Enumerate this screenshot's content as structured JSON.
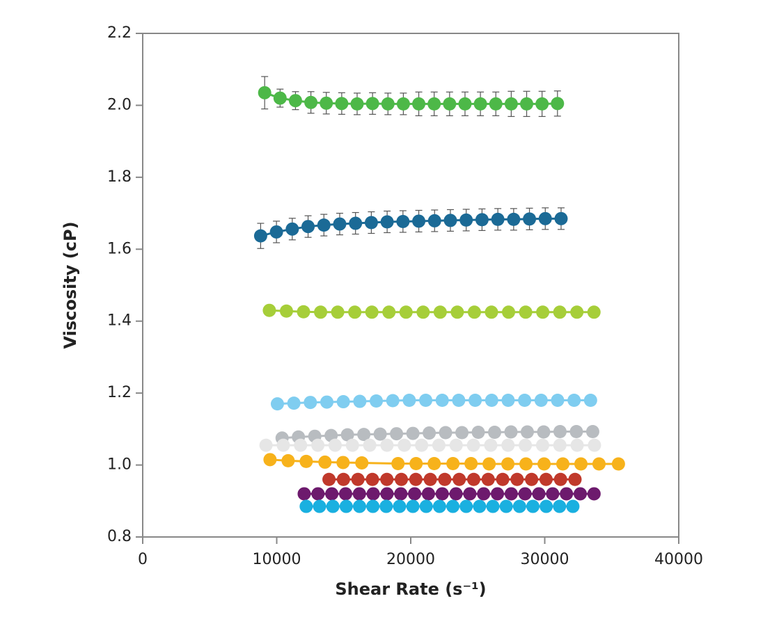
{
  "chart_data": {
    "type": "scatter",
    "xlabel": "Shear Rate (s⁻¹)",
    "ylabel": "Viscosity (cP)",
    "xlim": [
      0,
      40000
    ],
    "xticks": [
      0,
      10000,
      20000,
      30000,
      40000
    ],
    "ylim": [
      0.8,
      2.2
    ],
    "yticks": [
      0.8,
      {
        "value": 1,
        "label": "1.0"
      },
      1.2,
      1.4,
      1.6,
      1.8,
      {
        "value": 2,
        "label": "2.0"
      },
      2.2
    ],
    "series": [
      {
        "color": "#4db848",
        "x": [
          9100,
          10250,
          11400,
          12550,
          13700,
          14850,
          16000,
          17150,
          18300,
          19450,
          20600,
          21750,
          22900,
          24050,
          25200,
          26350,
          27500,
          28650,
          29800,
          30950
        ],
        "values": [
          2.035,
          2.02,
          2.013,
          2.008,
          2.006,
          2.005,
          2.004,
          2.005,
          2.004,
          2.004,
          2.004,
          2.004,
          2.004,
          2.004,
          2.004,
          2.004,
          2.004,
          2.004,
          2.004,
          2.005
        ],
        "errors": [
          0.045,
          0.025,
          0.025,
          0.03,
          0.03,
          0.03,
          0.03,
          0.03,
          0.03,
          0.03,
          0.033,
          0.033,
          0.033,
          0.033,
          0.033,
          0.033,
          0.035,
          0.035,
          0.035,
          0.035
        ]
      },
      {
        "color": "#1b6a96",
        "x": [
          8800,
          9980,
          11160,
          12340,
          13520,
          14700,
          15880,
          17060,
          18240,
          19420,
          20600,
          21780,
          22960,
          24140,
          25320,
          26500,
          27680,
          28860,
          30040,
          31220
        ],
        "values": [
          1.637,
          1.648,
          1.656,
          1.663,
          1.667,
          1.67,
          1.672,
          1.674,
          1.676,
          1.677,
          1.678,
          1.679,
          1.68,
          1.681,
          1.682,
          1.683,
          1.683,
          1.684,
          1.685,
          1.685
        ],
        "errors": [
          0.035,
          0.03,
          0.03,
          0.03,
          0.03,
          0.03,
          0.03,
          0.03,
          0.03,
          0.03,
          0.03,
          0.03,
          0.03,
          0.03,
          0.03,
          0.03,
          0.03,
          0.03,
          0.03,
          0.03
        ]
      },
      {
        "color": "#a6ce39",
        "x": [
          9450,
          10725,
          12000,
          13275,
          14550,
          15825,
          17100,
          18375,
          19650,
          20925,
          22200,
          23475,
          24750,
          26025,
          27300,
          28575,
          29850,
          31125,
          32400,
          33675
        ],
        "values": [
          1.43,
          1.428,
          1.426,
          1.425,
          1.425,
          1.425,
          1.425,
          1.425,
          1.425,
          1.425,
          1.425,
          1.425,
          1.425,
          1.425,
          1.425,
          1.425,
          1.425,
          1.425,
          1.425,
          1.425
        ]
      },
      {
        "color": "#7fcdf0",
        "x": [
          10050,
          11280,
          12510,
          13740,
          14970,
          16200,
          17430,
          18660,
          19890,
          21120,
          22350,
          23580,
          24810,
          26040,
          27270,
          28500,
          29730,
          30960,
          32190,
          33420
        ],
        "values": [
          1.17,
          1.172,
          1.174,
          1.175,
          1.176,
          1.177,
          1.178,
          1.179,
          1.18,
          1.18,
          1.18,
          1.18,
          1.18,
          1.18,
          1.18,
          1.18,
          1.18,
          1.18,
          1.18,
          1.18
        ]
      },
      {
        "color": "#b8bcc0",
        "x": [
          10400,
          11620,
          12840,
          14060,
          15280,
          16500,
          17720,
          18940,
          20160,
          21380,
          22600,
          23820,
          25040,
          26260,
          27480,
          28700,
          29920,
          31140,
          32360,
          33580
        ],
        "values": [
          1.075,
          1.078,
          1.08,
          1.082,
          1.084,
          1.085,
          1.086,
          1.087,
          1.088,
          1.089,
          1.09,
          1.09,
          1.091,
          1.091,
          1.092,
          1.092,
          1.092,
          1.093,
          1.093,
          1.093
        ]
      },
      {
        "color": "#e6e6e6",
        "x": [
          9200,
          10490,
          11780,
          13070,
          14360,
          15650,
          16940,
          18230,
          19520,
          20810,
          22100,
          23390,
          24680,
          25970,
          27260,
          28550,
          29840,
          31130,
          32420,
          33710
        ],
        "values": [
          1.055,
          1.055,
          1.055,
          1.055,
          1.055,
          1.055,
          1.055,
          1.055,
          1.055,
          1.055,
          1.055,
          1.055,
          1.055,
          1.055,
          1.055,
          1.055,
          1.055,
          1.055,
          1.055,
          1.055
        ]
      },
      {
        "color": "#f7b21b",
        "x": [
          9500,
          10850,
          12200,
          13600,
          14950,
          16350,
          19050,
          20400,
          21750,
          23150,
          24500,
          25850,
          27250,
          28600,
          29950,
          31350,
          32700,
          34050,
          35500
        ],
        "values": [
          1.015,
          1.012,
          1.01,
          1.008,
          1.007,
          1.006,
          1.004,
          1.004,
          1.004,
          1.004,
          1.004,
          1.003,
          1.003,
          1.003,
          1.003,
          1.003,
          1.003,
          1.003,
          1.003
        ]
      },
      {
        "color": "#c0392b",
        "x": [
          13900,
          14980,
          16060,
          17140,
          18220,
          19300,
          20380,
          21460,
          22540,
          23620,
          24700,
          25780,
          26860,
          27940,
          29020,
          30100,
          31180,
          32260
        ],
        "values": [
          0.96,
          0.96,
          0.96,
          0.96,
          0.96,
          0.96,
          0.96,
          0.96,
          0.96,
          0.96,
          0.96,
          0.96,
          0.96,
          0.96,
          0.96,
          0.96,
          0.96,
          0.96
        ]
      },
      {
        "color": "#6d1a6d",
        "x": [
          12050,
          13080,
          14110,
          15140,
          16170,
          17200,
          18230,
          19260,
          20290,
          21320,
          22350,
          23380,
          24410,
          25440,
          26470,
          27500,
          28530,
          29560,
          30590,
          31620,
          32650,
          33680
        ],
        "values": [
          0.92,
          0.92,
          0.92,
          0.92,
          0.92,
          0.92,
          0.92,
          0.92,
          0.92,
          0.92,
          0.92,
          0.92,
          0.92,
          0.92,
          0.92,
          0.92,
          0.92,
          0.92,
          0.92,
          0.92,
          0.92,
          0.92
        ]
      },
      {
        "color": "#1ab0e0",
        "x": [
          12200,
          13195,
          14190,
          15185,
          16180,
          17175,
          18170,
          19165,
          20160,
          21155,
          22150,
          23145,
          24140,
          25135,
          26130,
          27125,
          28120,
          29115,
          30110,
          31105,
          32100
        ],
        "values": [
          0.885,
          0.885,
          0.885,
          0.885,
          0.885,
          0.885,
          0.885,
          0.885,
          0.885,
          0.885,
          0.885,
          0.885,
          0.885,
          0.885,
          0.885,
          0.885,
          0.885,
          0.885,
          0.885,
          0.885,
          0.885
        ]
      }
    ]
  }
}
